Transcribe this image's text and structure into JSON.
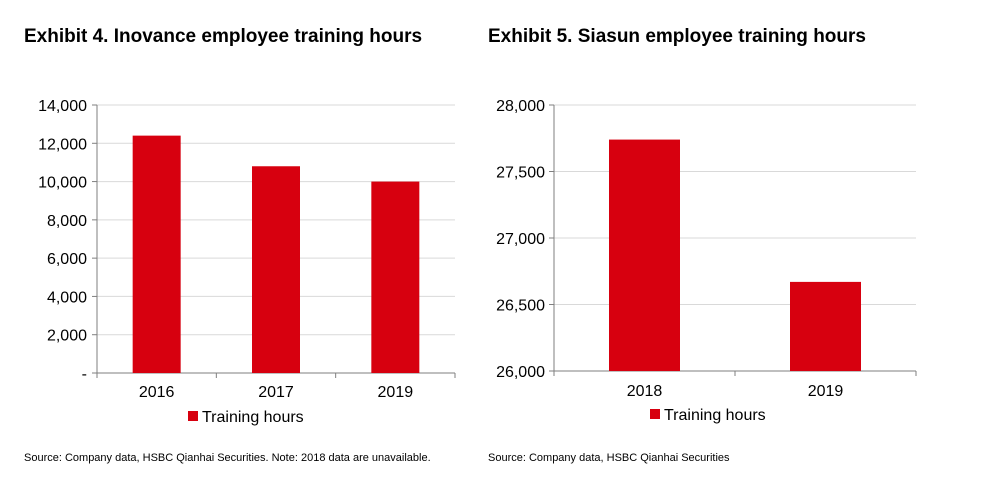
{
  "charts": [
    {
      "title": "Exhibit 4. Inovance employee training hours",
      "source": "Source: Company data, HSBC Qianhai Securities. Note: 2018 data are unavailable.",
      "color": "#d7000f"
    },
    {
      "title": "Exhibit 5. Siasun employee training hours",
      "source": "Source: Company data, HSBC Qianhai Securities",
      "color": "#d7000f"
    }
  ],
  "chart_data": [
    {
      "type": "bar",
      "categories": [
        "2016",
        "2017",
        "2019"
      ],
      "series": [
        {
          "name": "Training hours",
          "values": [
            12400,
            10800,
            10000
          ]
        }
      ],
      "ylim": [
        0,
        14000
      ],
      "yticks": [
        0,
        2000,
        4000,
        6000,
        8000,
        10000,
        12000,
        14000
      ],
      "ytick_labels": [
        "-",
        "2,000",
        "4,000",
        "6,000",
        "8,000",
        "10,000",
        "12,000",
        "14,000"
      ],
      "grid": true,
      "legend_position": "bottom"
    },
    {
      "type": "bar",
      "categories": [
        "2018",
        "2019"
      ],
      "series": [
        {
          "name": "Training hours",
          "values": [
            27740,
            26670
          ]
        }
      ],
      "ylim": [
        26000,
        28000
      ],
      "yticks": [
        26000,
        26500,
        27000,
        27500,
        28000
      ],
      "ytick_labels": [
        "26,000",
        "26,500",
        "27,000",
        "27,500",
        "28,000"
      ],
      "grid": true,
      "legend_position": "bottom"
    }
  ]
}
